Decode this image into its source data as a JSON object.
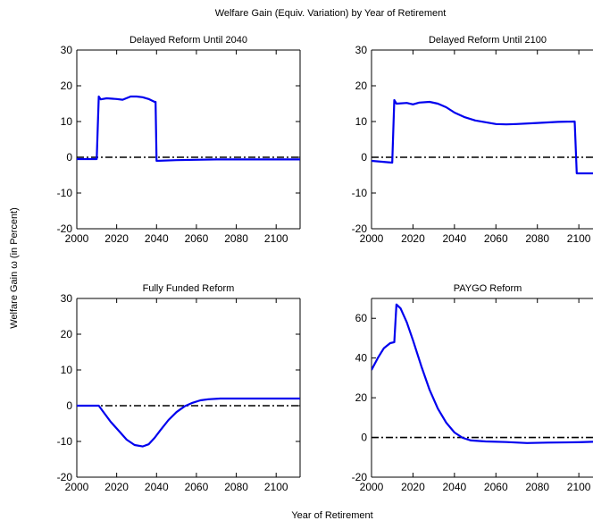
{
  "figure": {
    "suptitle": "Welfare Gain (Equiv. Variation) by Year of Retirement",
    "xlabel": "Year of Retirement",
    "ylabel": "Welfare Gain  ω (in Percent)"
  },
  "colors": {
    "line": "#0000ee",
    "reference": "#000000",
    "axes": "#000000"
  },
  "chart_data": [
    {
      "type": "line",
      "title": "Delayed Reform Until 2040",
      "xlim": [
        2000,
        2112
      ],
      "ylim": [
        -20,
        30
      ],
      "xticks": [
        2000,
        2020,
        2040,
        2060,
        2080,
        2100
      ],
      "yticks": [
        -20,
        -10,
        0,
        10,
        20,
        30
      ],
      "reference_line": 0,
      "series": [
        {
          "x": [
            2000,
            2010,
            2011,
            2012,
            2015,
            2020,
            2023,
            2027,
            2030,
            2033,
            2036,
            2039,
            2039.5,
            2040,
            2050,
            2070,
            2100,
            2112
          ],
          "y": [
            -0.5,
            -0.5,
            17,
            16.2,
            16.5,
            16.3,
            16.1,
            17.0,
            17.0,
            16.8,
            16.3,
            15.5,
            15.5,
            -1.0,
            -0.8,
            -0.6,
            -0.6,
            -0.6
          ]
        }
      ]
    },
    {
      "type": "line",
      "title": "Delayed Reform Until 2100",
      "xlim": [
        2000,
        2112
      ],
      "ylim": [
        -20,
        30
      ],
      "xticks": [
        2000,
        2020,
        2040,
        2060,
        2080,
        2100
      ],
      "yticks": [
        -20,
        -10,
        0,
        10,
        20,
        30
      ],
      "reference_line": 0,
      "series": [
        {
          "x": [
            2000,
            2010,
            2011,
            2012,
            2017,
            2020,
            2023,
            2028,
            2032,
            2036,
            2040,
            2045,
            2050,
            2055,
            2060,
            2065,
            2070,
            2080,
            2090,
            2098,
            2099,
            2112
          ],
          "y": [
            -1.0,
            -1.5,
            16,
            15.0,
            15.2,
            14.8,
            15.3,
            15.5,
            15.0,
            14.0,
            12.5,
            11.2,
            10.3,
            9.8,
            9.3,
            9.2,
            9.3,
            9.6,
            9.9,
            10.0,
            -4.5,
            -4.5
          ]
        }
      ]
    },
    {
      "type": "line",
      "title": "Fully Funded Reform",
      "xlim": [
        2000,
        2112
      ],
      "ylim": [
        -20,
        30
      ],
      "xticks": [
        2000,
        2020,
        2040,
        2060,
        2080,
        2100
      ],
      "yticks": [
        -20,
        -10,
        0,
        10,
        20,
        30
      ],
      "reference_line": 0,
      "series": [
        {
          "x": [
            2000,
            2005,
            2011,
            2013,
            2017,
            2021,
            2025,
            2029,
            2033,
            2036,
            2039,
            2042,
            2046,
            2050,
            2054,
            2058,
            2062,
            2066,
            2072,
            2080,
            2090,
            2112
          ],
          "y": [
            0,
            0,
            0,
            -1.5,
            -4.5,
            -7.0,
            -9.5,
            -11.0,
            -11.4,
            -10.8,
            -9.0,
            -6.8,
            -4.0,
            -1.8,
            -0.2,
            0.8,
            1.5,
            1.8,
            2.0,
            2.0,
            2.0,
            2.0
          ]
        }
      ]
    },
    {
      "type": "line",
      "title": "PAYGO Reform",
      "xlim": [
        2000,
        2112
      ],
      "ylim": [
        -20,
        70
      ],
      "xticks": [
        2000,
        2020,
        2040,
        2060,
        2080,
        2100
      ],
      "yticks": [
        -20,
        0,
        20,
        40,
        60
      ],
      "reference_line": 0,
      "series": [
        {
          "x": [
            2000,
            2003,
            2006,
            2009,
            2011,
            2012,
            2014,
            2017,
            2020,
            2024,
            2028,
            2032,
            2036,
            2040,
            2044,
            2048,
            2055,
            2065,
            2075,
            2085,
            2100,
            2112
          ],
          "y": [
            34,
            40,
            45,
            47.5,
            48,
            67,
            65,
            58,
            49,
            36,
            24,
            14.5,
            7.5,
            2.5,
            -0.2,
            -1.5,
            -2.0,
            -2.3,
            -2.8,
            -2.6,
            -2.4,
            -2.0
          ]
        }
      ]
    }
  ]
}
